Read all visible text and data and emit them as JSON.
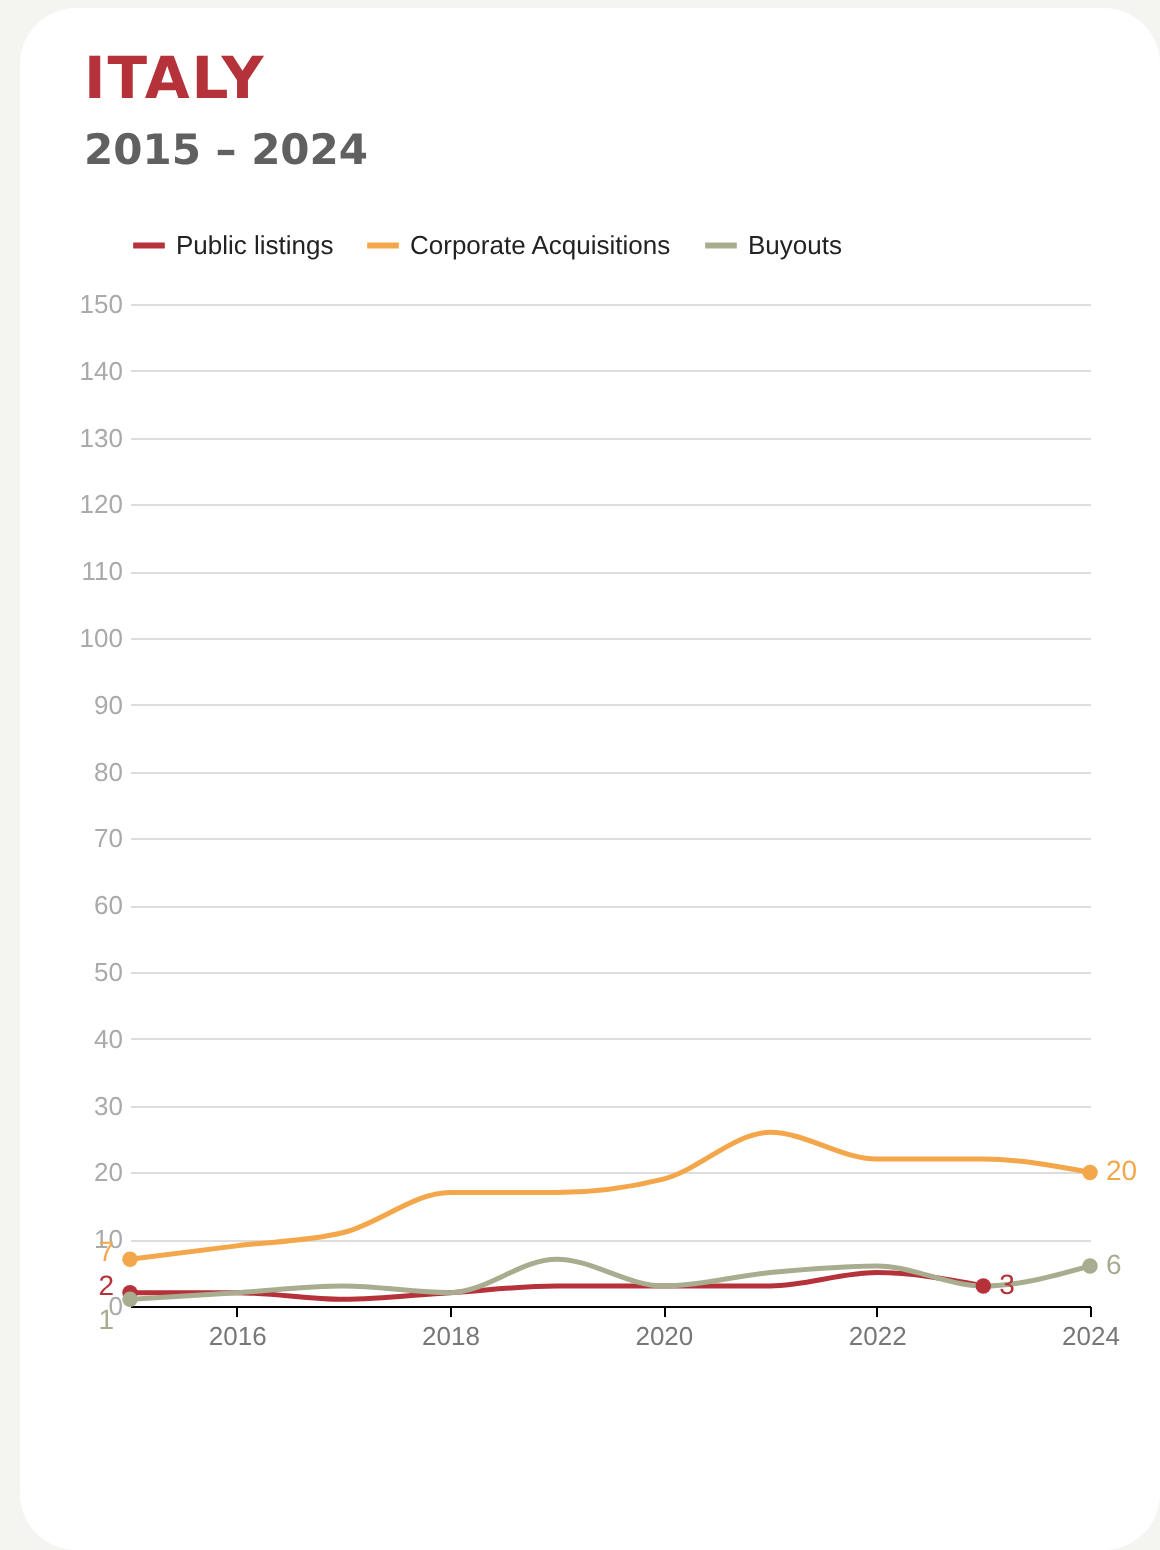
{
  "chart_data": {
    "type": "line",
    "title": "ITALY",
    "subtitle": "2015 – 2024",
    "x": [
      2015,
      2016,
      2017,
      2018,
      2019,
      2020,
      2021,
      2022,
      2023,
      2024
    ],
    "series": [
      {
        "name": "Public listings",
        "color": "#b5323a",
        "values": [
          2,
          2,
          1,
          2,
          3,
          3,
          3,
          5,
          3,
          null
        ],
        "value_labels": [
          "2",
          null,
          null,
          null,
          null,
          null,
          null,
          null,
          "3",
          null
        ]
      },
      {
        "name": "Corporate Acquisitions",
        "color": "#f4a64a",
        "values": [
          7,
          9,
          11,
          17,
          17,
          19,
          26,
          22,
          22,
          20
        ],
        "value_labels": [
          "7",
          null,
          null,
          null,
          null,
          null,
          null,
          null,
          null,
          "20"
        ]
      },
      {
        "name": "Buyouts",
        "color": "#a8ad8f",
        "values": [
          1,
          2,
          3,
          2,
          7,
          3,
          5,
          6,
          3,
          6
        ],
        "value_labels": [
          "1",
          null,
          null,
          null,
          null,
          null,
          null,
          null,
          null,
          "6"
        ]
      }
    ],
    "xlim": [
      2015,
      2024
    ],
    "xticks": [
      2016,
      2018,
      2020,
      2022,
      2024
    ],
    "ylim": [
      0,
      150
    ],
    "yticks": [
      0,
      10,
      20,
      30,
      40,
      50,
      60,
      70,
      80,
      90,
      100,
      110,
      120,
      130,
      140,
      150
    ],
    "grid": "y",
    "legend": "top left",
    "line_style": "solid"
  }
}
